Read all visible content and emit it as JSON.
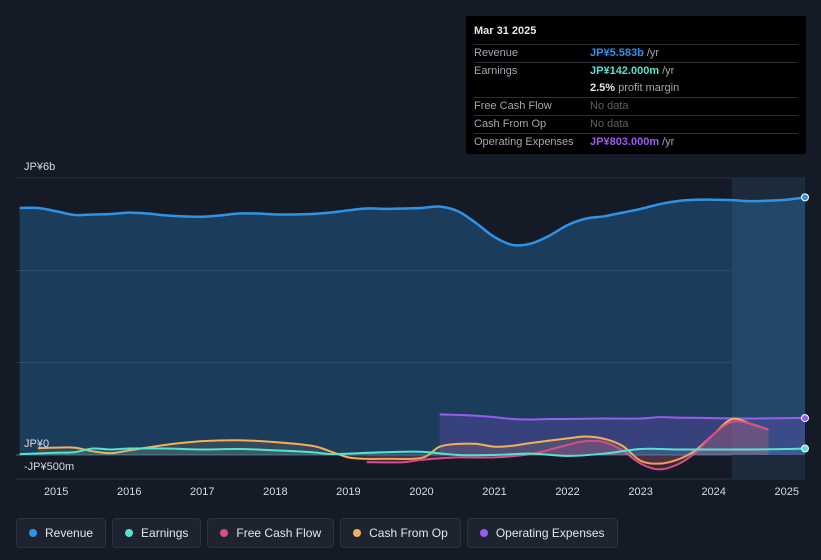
{
  "tooltip": {
    "date": "Mar 31 2025",
    "rows": {
      "revenue": {
        "label": "Revenue",
        "value": "JP¥5.583b",
        "unit": "/yr",
        "color": "#2e93e6"
      },
      "earnings": {
        "label": "Earnings",
        "value": "JP¥142.000m",
        "unit": "/yr",
        "color": "#57e2cf"
      },
      "margin": {
        "value": "2.5%",
        "text": "profit margin"
      },
      "fcf": {
        "label": "Free Cash Flow",
        "value": "No data"
      },
      "cfo": {
        "label": "Cash From Op",
        "value": "No data"
      },
      "opex": {
        "label": "Operating Expenses",
        "value": "JP¥803.000m",
        "unit": "/yr",
        "color": "#9a5bf0"
      }
    }
  },
  "chart_data": {
    "type": "area",
    "y_labels": {
      "top": "JP¥6b",
      "zero": "JP¥0",
      "bottom": "-JP¥500m"
    },
    "ylim": [
      -0.5,
      6.0
    ],
    "xlim": [
      2014.45,
      2025.25
    ],
    "x_ticks": [
      "2015",
      "2016",
      "2017",
      "2018",
      "2019",
      "2020",
      "2021",
      "2022",
      "2023",
      "2024",
      "2025"
    ],
    "x_tick_values": [
      2015,
      2016,
      2017,
      2018,
      2019,
      2020,
      2021,
      2022,
      2023,
      2024,
      2025
    ],
    "forecast_start": 2024.25,
    "series": [
      {
        "name": "Revenue",
        "color": "#2e93e6",
        "fill": true,
        "x": [
          2014.5,
          2014.75,
          2015.0,
          2015.25,
          2015.5,
          2015.75,
          2016.0,
          2016.25,
          2016.5,
          2016.75,
          2017.0,
          2017.25,
          2017.5,
          2017.75,
          2018.0,
          2018.25,
          2018.5,
          2018.75,
          2019.0,
          2019.25,
          2019.5,
          2019.75,
          2020.0,
          2020.25,
          2020.5,
          2020.75,
          2021.0,
          2021.25,
          2021.5,
          2021.75,
          2022.0,
          2022.25,
          2022.5,
          2022.75,
          2023.0,
          2023.25,
          2023.5,
          2023.75,
          2024.0,
          2024.25,
          2024.5,
          2024.75,
          2025.0,
          2025.25
        ],
        "values": [
          5.35,
          5.35,
          5.28,
          5.2,
          5.21,
          5.22,
          5.25,
          5.23,
          5.19,
          5.17,
          5.16,
          5.19,
          5.23,
          5.23,
          5.21,
          5.21,
          5.22,
          5.25,
          5.3,
          5.34,
          5.33,
          5.34,
          5.35,
          5.38,
          5.28,
          5.02,
          4.72,
          4.55,
          4.58,
          4.75,
          4.98,
          5.12,
          5.17,
          5.25,
          5.33,
          5.43,
          5.5,
          5.53,
          5.53,
          5.52,
          5.5,
          5.51,
          5.53,
          5.58
        ]
      },
      {
        "name": "Earnings",
        "color": "#57e2cf",
        "fill": true,
        "x": [
          2014.5,
          2015.0,
          2015.25,
          2015.5,
          2015.75,
          2016.0,
          2016.5,
          2017.0,
          2017.5,
          2018.0,
          2018.5,
          2018.75,
          2019.0,
          2019.5,
          2020.0,
          2020.5,
          2021.0,
          2021.5,
          2022.0,
          2022.5,
          2023.0,
          2023.5,
          2024.0,
          2024.5,
          2025.0,
          2025.25
        ],
        "values": [
          0.02,
          0.05,
          0.06,
          0.14,
          0.12,
          0.14,
          0.14,
          0.12,
          0.13,
          0.1,
          0.06,
          0.02,
          0.03,
          0.06,
          0.07,
          0.0,
          0.0,
          0.03,
          -0.02,
          0.03,
          0.13,
          0.12,
          0.12,
          0.12,
          0.13,
          0.14
        ]
      },
      {
        "name": "Free Cash Flow",
        "color": "#d74d88",
        "fill": true,
        "x": [
          2019.25,
          2019.75,
          2020.0,
          2020.5,
          2021.0,
          2021.5,
          2022.0,
          2022.25,
          2022.5,
          2022.75,
          2023.0,
          2023.25,
          2023.5,
          2023.75,
          2024.0,
          2024.25,
          2024.5,
          2024.75
        ],
        "values": [
          -0.15,
          -0.15,
          -0.1,
          -0.05,
          -0.05,
          0.02,
          0.22,
          0.3,
          0.28,
          0.1,
          -0.18,
          -0.3,
          -0.2,
          0.05,
          0.45,
          0.72,
          0.68,
          0.55
        ]
      },
      {
        "name": "Cash From Op",
        "color": "#f2b05a",
        "fill": true,
        "x": [
          2014.75,
          2015.0,
          2015.25,
          2015.5,
          2015.75,
          2016.0,
          2016.5,
          2017.0,
          2017.5,
          2018.0,
          2018.5,
          2018.75,
          2019.0,
          2019.25,
          2019.5,
          2020.0,
          2020.25,
          2020.5,
          2020.75,
          2021.0,
          2021.25,
          2021.5,
          2022.0,
          2022.25,
          2022.5,
          2022.75,
          2023.0,
          2023.25,
          2023.5,
          2023.75,
          2024.0,
          2024.25,
          2024.5,
          2024.75
        ],
        "values": [
          0.15,
          0.16,
          0.16,
          0.08,
          0.04,
          0.1,
          0.22,
          0.3,
          0.32,
          0.28,
          0.2,
          0.08,
          -0.05,
          -0.08,
          -0.08,
          -0.06,
          0.18,
          0.24,
          0.24,
          0.18,
          0.2,
          0.26,
          0.36,
          0.4,
          0.35,
          0.2,
          -0.12,
          -0.18,
          -0.1,
          0.1,
          0.45,
          0.78,
          0.68,
          0.55
        ]
      },
      {
        "name": "Operating Expenses",
        "color": "#9a5bf0",
        "fill": true,
        "x": [
          2020.25,
          2020.5,
          2020.75,
          2021.0,
          2021.25,
          2021.5,
          2021.75,
          2022.0,
          2022.5,
          2023.0,
          2023.25,
          2023.5,
          2024.0,
          2024.5,
          2025.0,
          2025.25
        ],
        "values": [
          0.88,
          0.87,
          0.85,
          0.82,
          0.78,
          0.77,
          0.78,
          0.78,
          0.79,
          0.79,
          0.82,
          0.81,
          0.8,
          0.79,
          0.8,
          0.8
        ]
      }
    ]
  },
  "legend": [
    {
      "label": "Revenue",
      "color": "#2e93e6"
    },
    {
      "label": "Earnings",
      "color": "#57e2cf"
    },
    {
      "label": "Free Cash Flow",
      "color": "#d74d88"
    },
    {
      "label": "Cash From Op",
      "color": "#f2b05a"
    },
    {
      "label": "Operating Expenses",
      "color": "#9a5bf0"
    }
  ]
}
